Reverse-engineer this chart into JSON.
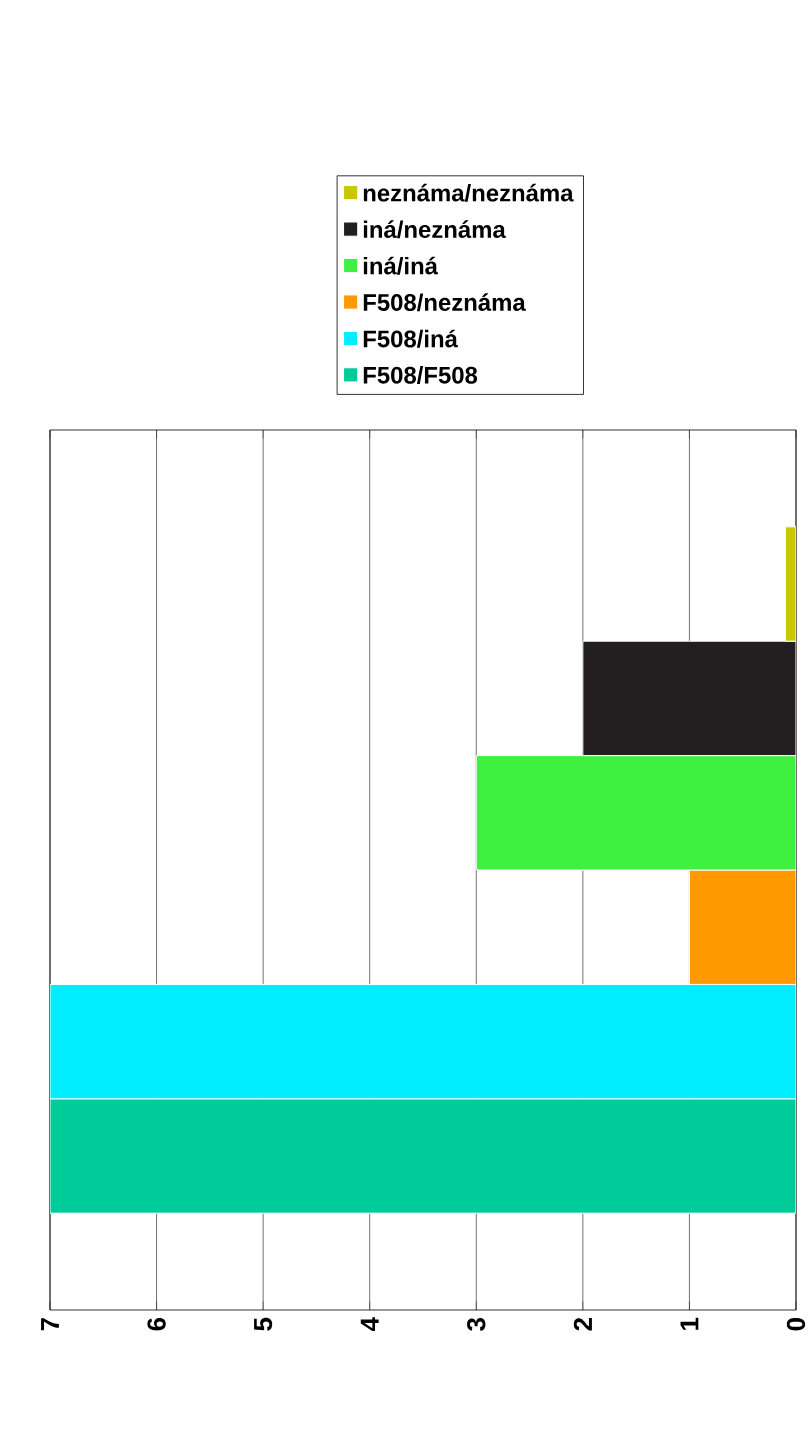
{
  "chart_data": {
    "type": "bar",
    "orientation": "horizontal",
    "categories": [
      null
    ],
    "series": [
      {
        "name": "F508/F508",
        "color": "#00cc99",
        "values": [
          7
        ]
      },
      {
        "name": "F508/iná",
        "color": "#00eeff",
        "values": [
          7
        ]
      },
      {
        "name": "F508/neznáma",
        "color": "#ff9900",
        "values": [
          1
        ]
      },
      {
        "name": "iná/iná",
        "color": "#40f040",
        "values": [
          3
        ]
      },
      {
        "name": "iná/neznáma",
        "color": "#231f20",
        "values": [
          2
        ]
      },
      {
        "name": "neznáma/neznáma",
        "color": "#c8c800",
        "values": [
          0.1
        ]
      }
    ],
    "xlim": [
      7,
      0
    ],
    "xticks": [
      0,
      1,
      2,
      3,
      4,
      5,
      6,
      7
    ],
    "grid": "x",
    "legend": "top",
    "tick_labels": "x"
  }
}
